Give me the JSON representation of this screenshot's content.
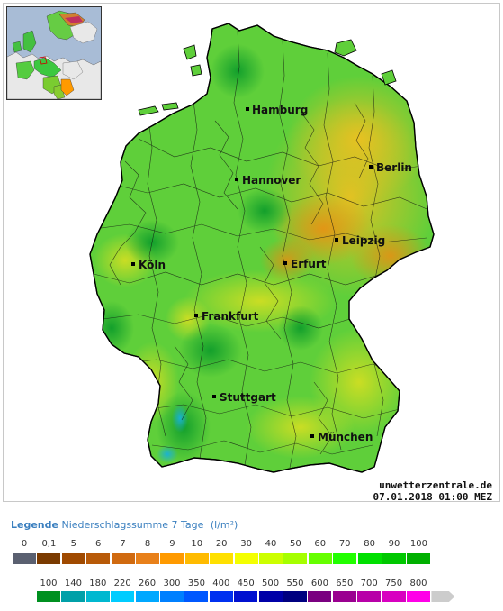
{
  "map": {
    "cities": [
      {
        "name": "Hamburg"
      },
      {
        "name": "Berlin"
      },
      {
        "name": "Hannover"
      },
      {
        "name": "Leipzig"
      },
      {
        "name": "Köln"
      },
      {
        "name": "Erfurt"
      },
      {
        "name": "Frankfurt"
      },
      {
        "name": "Stuttgart"
      },
      {
        "name": "München"
      }
    ],
    "site": "unwetterzentrale.de",
    "timestamp": "07.01.2018 01:00 MEZ"
  },
  "legend": {
    "title_bold": "Legende",
    "title_rest": "Niederschlagssumme 7 Tage",
    "unit": "(l/m²)",
    "row1": [
      {
        "label": "0",
        "color": "#5a6070"
      },
      {
        "label": "0,1",
        "color": "#7a3a00"
      },
      {
        "label": "5",
        "color": "#a04a00"
      },
      {
        "label": "6",
        "color": "#b85a08"
      },
      {
        "label": "7",
        "color": "#d06a10"
      },
      {
        "label": "8",
        "color": "#e8801a"
      },
      {
        "label": "9",
        "color": "#ff9a00"
      },
      {
        "label": "10",
        "color": "#ffbb00"
      },
      {
        "label": "20",
        "color": "#ffe000"
      },
      {
        "label": "30",
        "color": "#f4ff00"
      },
      {
        "label": "40",
        "color": "#ccff00"
      },
      {
        "label": "50",
        "color": "#a6ff00"
      },
      {
        "label": "60",
        "color": "#66ff00"
      },
      {
        "label": "70",
        "color": "#22ff00"
      },
      {
        "label": "80",
        "color": "#00e000"
      },
      {
        "label": "90",
        "color": "#00c800"
      },
      {
        "label": "100",
        "color": "#00b000"
      }
    ],
    "row2": [
      {
        "label": "100",
        "color": "#009020"
      },
      {
        "label": "140",
        "color": "#00a0a8"
      },
      {
        "label": "180",
        "color": "#00b8d0"
      },
      {
        "label": "220",
        "color": "#00ccff"
      },
      {
        "label": "260",
        "color": "#00a8ff"
      },
      {
        "label": "300",
        "color": "#0080ff"
      },
      {
        "label": "350",
        "color": "#0058ff"
      },
      {
        "label": "400",
        "color": "#0030f0"
      },
      {
        "label": "450",
        "color": "#0010d0"
      },
      {
        "label": "500",
        "color": "#0000a8"
      },
      {
        "label": "550",
        "color": "#000080"
      },
      {
        "label": "600",
        "color": "#7a0080"
      },
      {
        "label": "650",
        "color": "#9a0090"
      },
      {
        "label": "700",
        "color": "#b800a8"
      },
      {
        "label": "750",
        "color": "#d800c0"
      },
      {
        "label": "800",
        "color": "#ff00e8"
      },
      {
        "label": "",
        "color": "#cccccc"
      }
    ]
  }
}
